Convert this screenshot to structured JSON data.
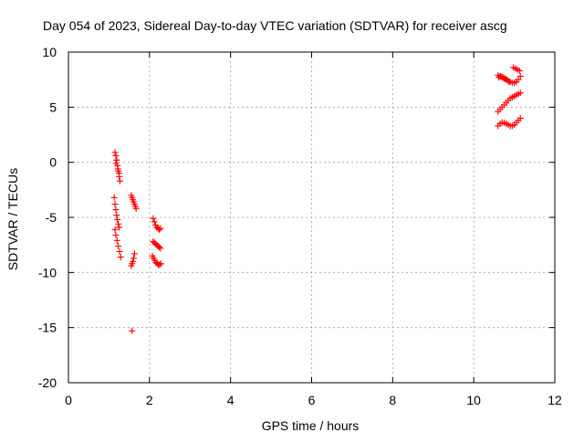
{
  "chart_data": {
    "type": "scatter",
    "title": "Day 054 of 2023, Sidereal Day-to-day VTEC variation (SDTVAR) for receiver ascg",
    "xlabel": "GPS time / hours",
    "ylabel": "SDTVAR / TECUs",
    "xlim": [
      0,
      12
    ],
    "ylim": [
      -20,
      10
    ],
    "xticks": [
      0,
      2,
      4,
      6,
      8,
      10,
      12
    ],
    "yticks": [
      -20,
      -15,
      -10,
      -5,
      0,
      5,
      10
    ],
    "xtick_labels": [
      "0",
      "2",
      "4",
      "6",
      "8",
      "10",
      "12"
    ],
    "ytick_labels": [
      "-20",
      "-15",
      "-10",
      "-5",
      "0",
      "5",
      "10"
    ],
    "grid": true,
    "marker": "+",
    "marker_color": "#ff0000",
    "series": [
      {
        "x": [
          1.15,
          1.17,
          1.19,
          1.21,
          1.23,
          1.25,
          1.27,
          1.17,
          1.19,
          1.22,
          1.25,
          1.13,
          1.15,
          1.17,
          1.19,
          1.21,
          1.23,
          1.25,
          1.15,
          1.17,
          1.2,
          1.23,
          1.26,
          1.29,
          1.55,
          1.57,
          1.59,
          1.61,
          1.63,
          1.65,
          1.67,
          1.55,
          1.57,
          1.59,
          1.61,
          1.63,
          1.57,
          2.09,
          2.12,
          2.15,
          2.18,
          2.21,
          2.24,
          2.27,
          2.09,
          2.12,
          2.15,
          2.18,
          2.21,
          2.24,
          2.27,
          2.07,
          2.1,
          2.13,
          2.16,
          2.19,
          2.22,
          2.25,
          2.28,
          10.6,
          10.65,
          10.7,
          10.75,
          10.8,
          10.85,
          10.9,
          10.95,
          11.0,
          11.05,
          11.1,
          11.15,
          10.6,
          10.65,
          10.7,
          10.75,
          10.8,
          10.85,
          10.9,
          10.95,
          11.0,
          11.05,
          11.1,
          11.15,
          10.6,
          10.65,
          10.7,
          10.75,
          10.8,
          10.85,
          10.9,
          10.95,
          11.0,
          11.05,
          11.1,
          11.15,
          10.62,
          10.67,
          10.72,
          10.77,
          10.82,
          10.87,
          10.98,
          11.03,
          11.08,
          11.13
        ],
        "y": [
          0.9,
          0.6,
          0.2,
          -0.3,
          -0.8,
          -1.3,
          -1.7,
          -0.1,
          0.2,
          -0.6,
          -1.0,
          -3.2,
          -3.8,
          -4.3,
          -4.8,
          -5.2,
          -5.6,
          -5.9,
          -6.1,
          -6.6,
          -7.1,
          -7.6,
          -8.1,
          -8.6,
          -3.0,
          -3.2,
          -3.4,
          -3.6,
          -3.8,
          -4.0,
          -4.2,
          -9.4,
          -9.2,
          -9.0,
          -8.7,
          -8.3,
          -15.3,
          -5.1,
          -5.4,
          -5.7,
          -5.9,
          -6.0,
          -6.1,
          -6.0,
          -7.2,
          -7.3,
          -7.4,
          -7.5,
          -7.6,
          -7.7,
          -7.8,
          -8.5,
          -8.7,
          -8.9,
          -9.1,
          -9.2,
          -9.3,
          -9.3,
          -9.2,
          7.9,
          7.8,
          7.7,
          7.6,
          7.5,
          7.4,
          7.3,
          7.2,
          7.2,
          7.3,
          7.5,
          7.8,
          4.6,
          4.8,
          5.0,
          5.2,
          5.4,
          5.6,
          5.8,
          5.9,
          6.0,
          6.1,
          6.2,
          6.3,
          3.3,
          3.5,
          3.6,
          3.6,
          3.5,
          3.4,
          3.3,
          3.3,
          3.4,
          3.6,
          3.8,
          4.0,
          7.7,
          7.8,
          7.7,
          7.6,
          7.5,
          7.3,
          8.6,
          8.5,
          8.4,
          8.3
        ]
      }
    ]
  }
}
